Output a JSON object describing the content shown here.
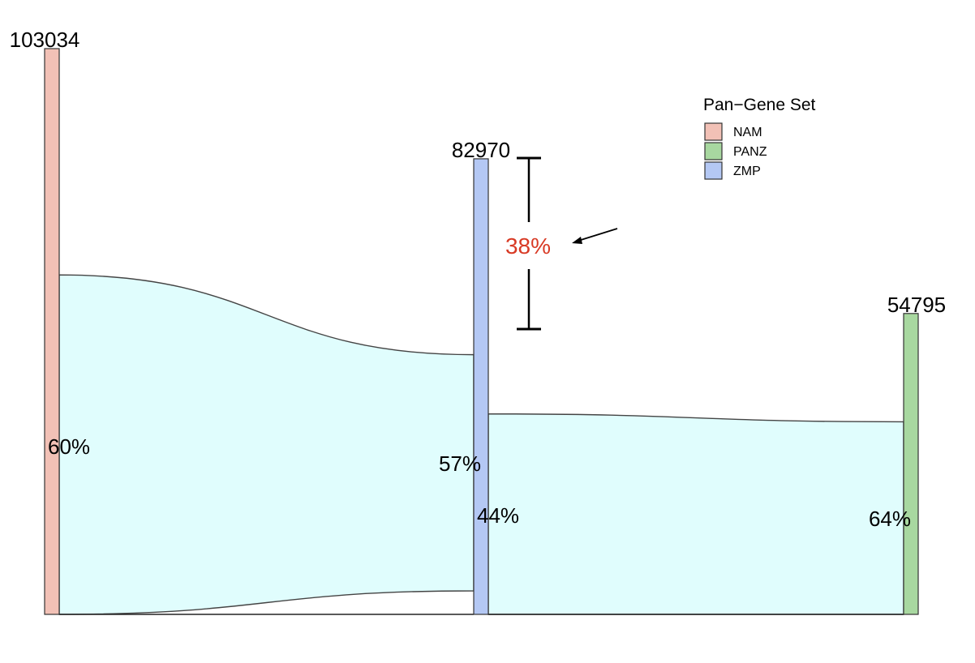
{
  "chart_data": {
    "type": "sankey",
    "nodes": [
      {
        "id": "NAM",
        "total": 103034,
        "total_label": "103034",
        "color": "#f2c1b6"
      },
      {
        "id": "ZMP",
        "total": 82970,
        "total_label": "82970",
        "color": "#b4c8f4"
      },
      {
        "id": "PANZ",
        "total": 54795,
        "total_label": "54795",
        "color": "#a8d8a0"
      }
    ],
    "flows": [
      {
        "source": "NAM",
        "target": "ZMP",
        "source_pct": 60,
        "target_pct": 57,
        "source_label": "60%",
        "target_label": "57%",
        "color": "#e0fdfd"
      },
      {
        "source": "ZMP",
        "target": "PANZ",
        "source_pct": 44,
        "target_pct": 64,
        "source_label": "44%",
        "target_label": "64%",
        "color": "#e0fdfd"
      }
    ],
    "annotation": {
      "node": "ZMP",
      "value_pct": 38,
      "label": "38%",
      "color": "#d83a25"
    },
    "legend": {
      "title": "Pan−Gene Set",
      "position": "top-right",
      "items": [
        {
          "label": "NAM",
          "color": "#f2c1b6"
        },
        {
          "label": "PANZ",
          "color": "#a8d8a0"
        },
        {
          "label": "ZMP",
          "color": "#b4c8f4"
        }
      ]
    }
  }
}
